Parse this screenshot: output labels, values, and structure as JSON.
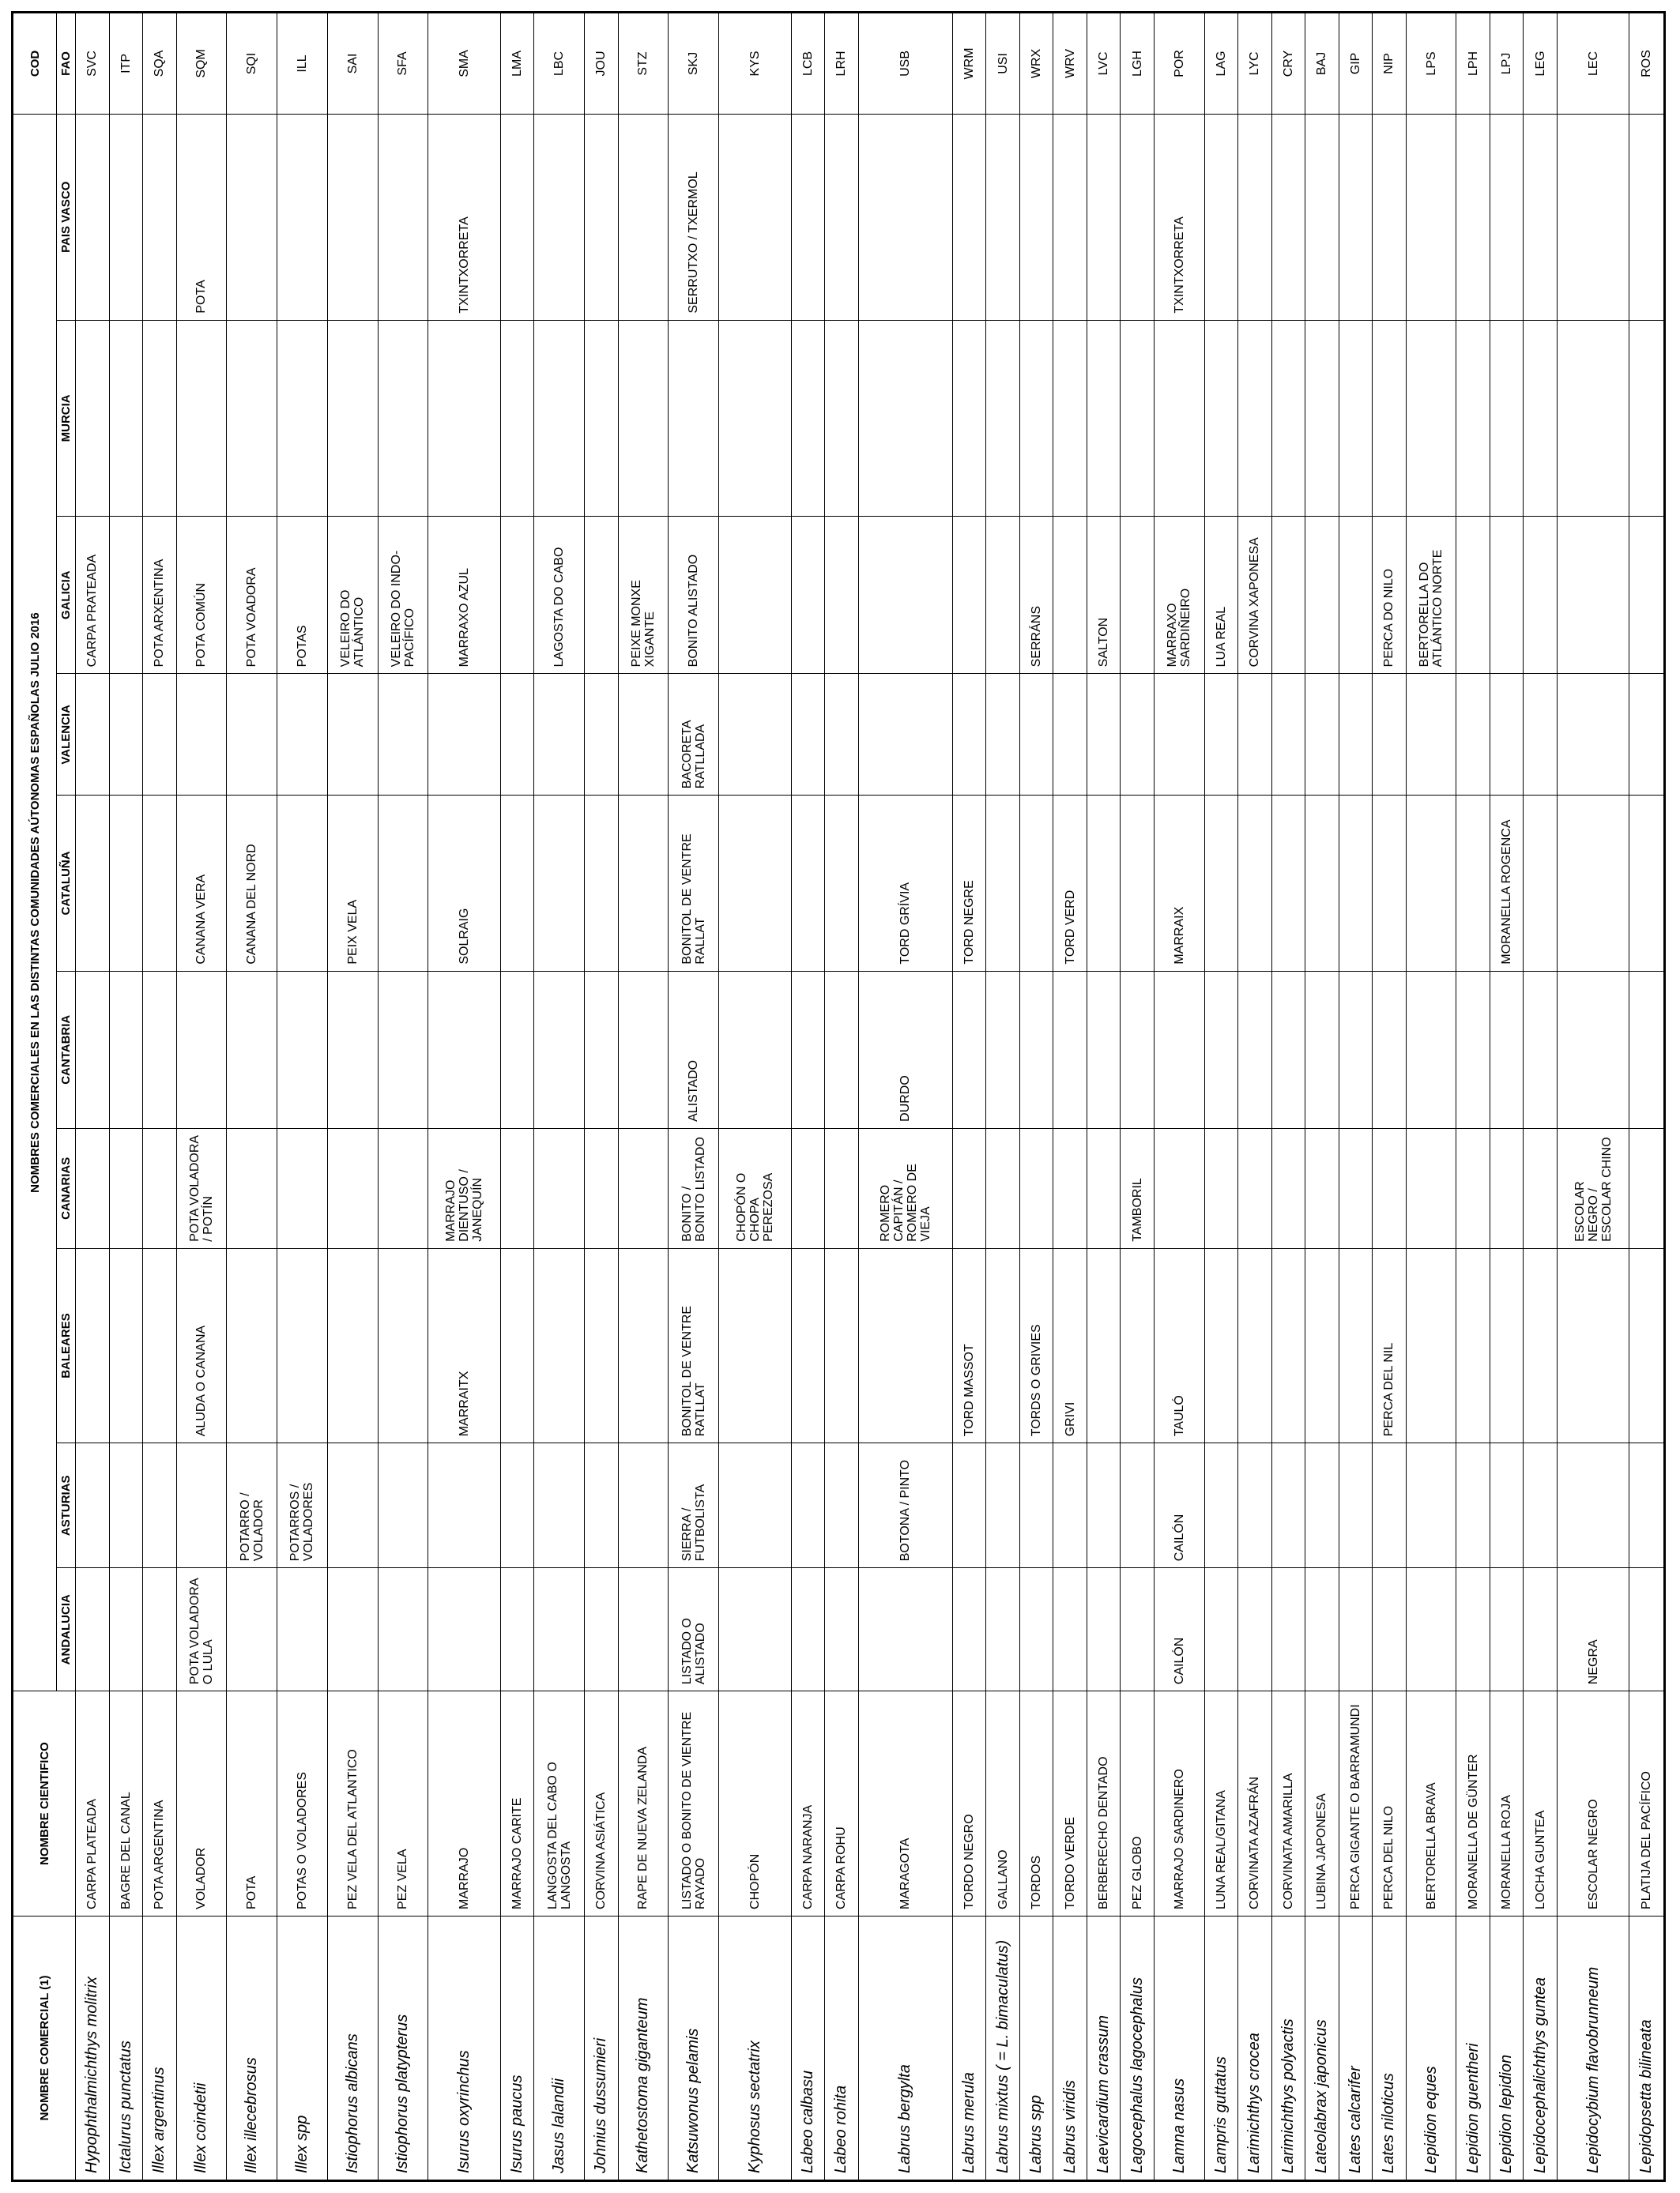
{
  "header": {
    "scientific": "NOMBRE COMERCIAL (1)",
    "common": "NOMBRE CIENTIFICO",
    "group": "NOMBRES COMERCIALES EN LAS DISTINTAS COMUNIDADES AÚTONOMAS ESPAÑOLAS JULIO 2016",
    "regions": [
      "ANDALUCIA",
      "ASTURIAS",
      "BALEARES",
      "CANARIAS",
      "CANTABRIA",
      "CATALUÑA",
      "VALENCIA",
      "GALICIA",
      "MURCIA",
      "PAIS VASCO"
    ],
    "cod": "COD",
    "fao": "FAO"
  },
  "table": {
    "rows": [
      [
        "Hypophthalmichthys molitrix",
        "CARPA PLATEADA",
        null,
        null,
        null,
        null,
        null,
        null,
        null,
        "CARPA PRATEADA",
        null,
        null,
        "SVC"
      ],
      [
        "Ictalurus punctatus",
        "BAGRE DEL CANAL",
        null,
        null,
        null,
        null,
        null,
        null,
        null,
        null,
        null,
        null,
        "ITP"
      ],
      [
        "Illex argentinus",
        "POTA ARGENTINA",
        null,
        null,
        null,
        null,
        null,
        null,
        null,
        "POTA ARXENTINA",
        null,
        null,
        "SQA"
      ],
      [
        "Illex coindetii",
        "VOLADOR",
        "POTA VOLADORA O LULA",
        null,
        "ALUDA O CANANA",
        "POTA VOLADORA / POTÍN",
        null,
        "CANANA VERA",
        null,
        "POTA COMÚN",
        null,
        "POTA",
        "SQM"
      ],
      [
        "Illex illecebrosus",
        "POTA",
        null,
        "POTARRO / VOLADOR",
        null,
        null,
        null,
        "CANANA DEL NORD",
        null,
        "POTA VOADORA",
        null,
        null,
        "SQI"
      ],
      [
        "Illex spp",
        "POTAS O VOLADORES",
        null,
        "POTARROS / VOLADORES",
        null,
        null,
        null,
        null,
        null,
        "POTAS",
        null,
        null,
        "ILL"
      ],
      [
        "Istiophorus albicans",
        "PEZ VELA DEL ATLANTICO",
        null,
        null,
        null,
        null,
        null,
        "PEIX VELA",
        null,
        "VELEIRO DO ATLÁNTICO",
        null,
        null,
        "SAI"
      ],
      [
        "Istiophorus platypterus",
        "PEZ VELA",
        null,
        null,
        null,
        null,
        null,
        null,
        null,
        "VELEIRO DO INDO-PACÍFICO",
        null,
        null,
        "SFA"
      ],
      [
        "Isurus oxyrinchus",
        "MARRAJO",
        null,
        null,
        "MARRAITX",
        "MARRAJO DIENTUSO / JANEQUÍN",
        null,
        "SOLRAIG",
        null,
        "MARRAXO AZUL",
        null,
        "TXINTXORRETA",
        "SMA"
      ],
      [
        "Isurus paucus",
        "MARRAJO CARITE",
        null,
        null,
        null,
        null,
        null,
        null,
        null,
        null,
        null,
        null,
        "LMA"
      ],
      [
        "Jasus lalandii",
        "LANGOSTA DEL CABO O LANGOSTA",
        null,
        null,
        null,
        null,
        null,
        null,
        null,
        "LAGOSTA DO CABO",
        null,
        null,
        "LBC"
      ],
      [
        "Johnius dussumieri",
        "CORVINA ASIÁTICA",
        null,
        null,
        null,
        null,
        null,
        null,
        null,
        null,
        null,
        null,
        "JOU"
      ],
      [
        "Kathetostoma giganteum",
        "RAPE DE NUEVA ZELANDA",
        null,
        null,
        null,
        null,
        null,
        null,
        null,
        "PEIXE MONXE XIGANTE",
        null,
        null,
        "STZ"
      ],
      [
        "Katsuwonus pelamis",
        "LISTADO O BONITO DE VIENTRE  RAYADO",
        "LISTADO O ALISTADO",
        "SIERRA / FUTBOLISTA",
        "BONITOL DE VENTRE RATLLAT",
        "BONITO / BONITO LISTADO",
        "ALISTADO",
        "BONITOL DE VENTRE RALLAT",
        "BACORETA RATLLADA",
        "BONITO ALISTADO",
        null,
        "SERRUTXO / TXERMOL",
        "SKJ"
      ],
      [
        "Kyphosus sectatrix",
        "CHOPÓN",
        null,
        null,
        null,
        "CHOPÓN O CHOPA PEREZOSA",
        null,
        null,
        null,
        null,
        null,
        null,
        "KYS"
      ],
      [
        "Labeo calbasu",
        "CARPA NARANJA",
        null,
        null,
        null,
        null,
        null,
        null,
        null,
        null,
        null,
        null,
        "LCB"
      ],
      [
        "Labeo rohita",
        "CARPA ROHU",
        null,
        null,
        null,
        null,
        null,
        null,
        null,
        null,
        null,
        null,
        "LRH"
      ],
      [
        "Labrus bergylta",
        "MARAGOTA",
        null,
        "BOTONA / PINTO",
        null,
        "ROMERO CAPITÁN / ROMERO DE VIEJA",
        "DURDO",
        "TORD GRÍVIA",
        null,
        null,
        null,
        null,
        "USB"
      ],
      [
        "Labrus merula",
        "TORDO NEGRO",
        null,
        null,
        "TORD MASSOT",
        null,
        null,
        "TORD NEGRE",
        null,
        null,
        null,
        null,
        "WRM"
      ],
      [
        "Labrus mixtus ( = L. bimaculatus)",
        "GALLANO",
        null,
        null,
        null,
        null,
        null,
        null,
        null,
        null,
        null,
        null,
        "USI"
      ],
      [
        "Labrus  spp",
        "TORDOS",
        null,
        null,
        "TORDS O GRIVIES",
        null,
        null,
        null,
        null,
        "SERRÁNS",
        null,
        null,
        "WRX"
      ],
      [
        "Labrus viridis",
        "TORDO VERDE",
        null,
        null,
        "GRIVI",
        null,
        null,
        "TORD VERD",
        null,
        null,
        null,
        null,
        "WRV"
      ],
      [
        "Laevicardium crassum",
        "BERBERECHO DENTADO",
        null,
        null,
        null,
        null,
        null,
        null,
        null,
        "SALTON",
        null,
        null,
        "LVC"
      ],
      [
        "Lagocephalus lagocephalus",
        "PEZ GLOBO",
        null,
        null,
        null,
        "TAMBORIL",
        null,
        null,
        null,
        null,
        null,
        null,
        "LGH"
      ],
      [
        "Lamna nasus",
        "MARRAJO SARDINERO",
        "CAILÓN",
        "CAILÓN",
        "TAULÓ",
        null,
        null,
        "MARRAIX",
        null,
        "MARRAXO SARDIÑEIRO",
        null,
        "TXINTXORRETA",
        "POR"
      ],
      [
        "Lampris guttatus",
        "LUNA REAL/GITANA",
        null,
        null,
        null,
        null,
        null,
        null,
        null,
        "LUA REAL",
        null,
        null,
        "LAG"
      ],
      [
        "Larimichthys crocea",
        "CORVINATA AZAFRÁN",
        null,
        null,
        null,
        null,
        null,
        null,
        null,
        "CORVINA XAPONESA",
        null,
        null,
        "LYC"
      ],
      [
        "Larimichthys polyactis",
        "CORVINATA AMARILLA",
        null,
        null,
        null,
        null,
        null,
        null,
        null,
        null,
        null,
        null,
        "CRY"
      ],
      [
        "Lateolabrax japonicus",
        "LUBINA JAPONESA",
        null,
        null,
        null,
        null,
        null,
        null,
        null,
        null,
        null,
        null,
        "BAJ"
      ],
      [
        "Lates calcarifer",
        "PERCA GIGANTE O BARRAMUNDI",
        null,
        null,
        null,
        null,
        null,
        null,
        null,
        null,
        null,
        null,
        "GIP"
      ],
      [
        "Lates niloticus",
        "PERCA DEL NILO",
        null,
        null,
        "PERCA DEL NIL",
        null,
        null,
        null,
        null,
        "PERCA DO NILO",
        null,
        null,
        "NIP"
      ],
      [
        "Lepidion eques",
        "BERTORELLA BRAVA",
        null,
        null,
        null,
        null,
        null,
        null,
        null,
        "BERTORELLA DO ATLÁNTICO NORTE",
        null,
        null,
        "LPS"
      ],
      [
        "Lepidion guentheri",
        "MORANELLA DE GÜNTER",
        null,
        null,
        null,
        null,
        null,
        null,
        null,
        null,
        null,
        null,
        "LPH"
      ],
      [
        "Lepidion lepidion",
        "MORANELLA ROJA",
        null,
        null,
        null,
        null,
        null,
        "MORANELLA ROGENCA",
        null,
        null,
        null,
        null,
        "LPJ"
      ],
      [
        "Lepidocephalichthys guntea",
        "LOCHA GUNTEA",
        null,
        null,
        null,
        null,
        null,
        null,
        null,
        null,
        null,
        null,
        "LEG"
      ],
      [
        "Lepidocybium flavobrunneum",
        "ESCOLAR NEGRO",
        "NEGRA",
        null,
        null,
        "ESCOLAR NEGRO / ESCOLAR CHINO",
        null,
        null,
        null,
        null,
        null,
        null,
        "LEC"
      ],
      [
        "Lepidopsetta bilineata",
        "PLATIJA DEL PACÍFICO",
        null,
        null,
        null,
        null,
        null,
        null,
        null,
        null,
        null,
        null,
        "ROS"
      ]
    ]
  }
}
